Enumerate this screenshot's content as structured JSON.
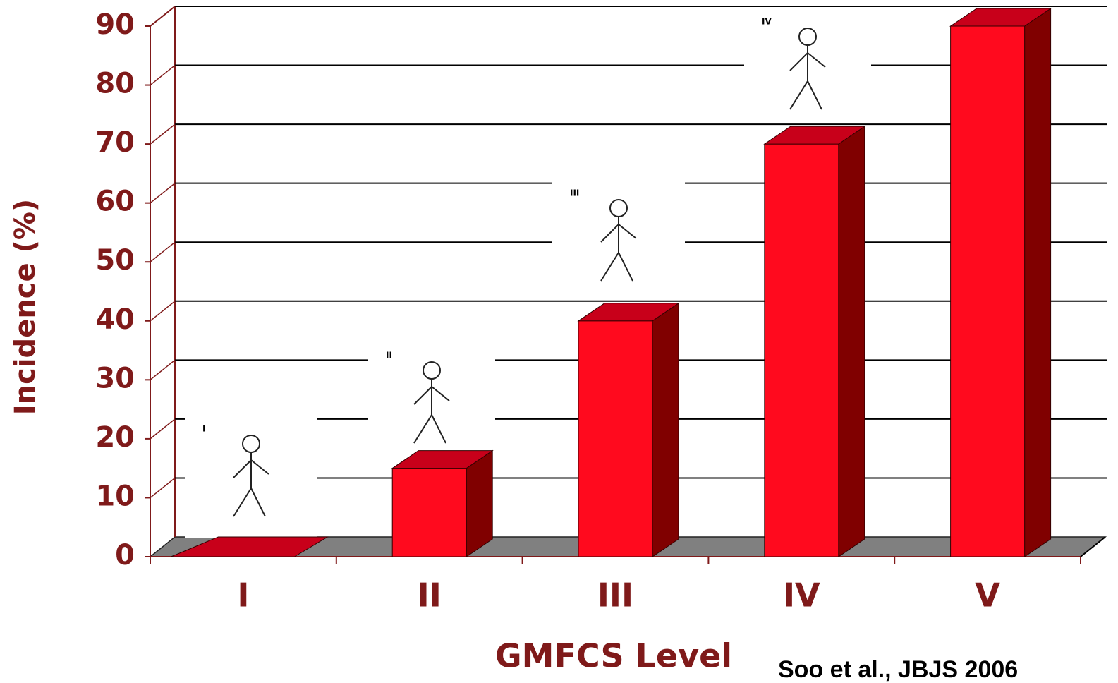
{
  "chart_data": {
    "type": "bar3d",
    "y_label": "Incidence (%)",
    "x_label": "GMFCS Level",
    "annotation": "Soo et al., JBJS 2006",
    "illustration_labels": [
      "I",
      "II",
      "III",
      "IV"
    ],
    "categories": [
      "I",
      "II",
      "III",
      "IV",
      "V"
    ],
    "values": [
      0,
      15,
      40,
      70,
      90
    ],
    "color": "#ff0a1e",
    "ylim": [
      0,
      90
    ],
    "yticks": [
      0,
      10,
      20,
      30,
      40,
      50,
      60,
      70,
      80,
      90
    ],
    "grid": true
  }
}
